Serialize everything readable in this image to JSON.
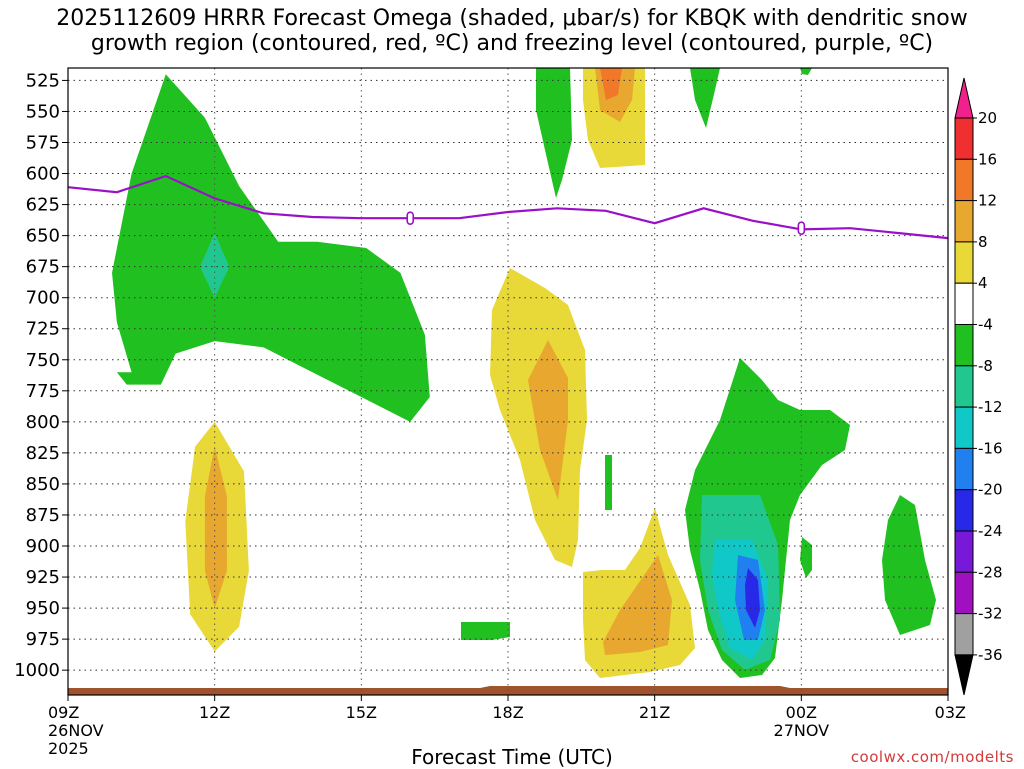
{
  "title_line1": "2025112609 HRRR Forecast Omega (shaded, μbar/s) for KBQK with dendritic snow",
  "title_line2": "growth region (contoured, red, ºC) and freezing level (contoured, purple, ºC)",
  "xlabel": "Forecast Time (UTC)",
  "credit": "coolwx.com/modelts",
  "chart_data": {
    "type": "time-height cross section (filled contours)",
    "x_unit": "hours since 2025-11-26 09Z",
    "xlim": [
      0,
      18
    ],
    "ylim_hpa": [
      1020,
      515
    ],
    "y_ticks": [
      525,
      550,
      575,
      600,
      625,
      650,
      675,
      700,
      725,
      750,
      775,
      800,
      825,
      850,
      875,
      900,
      925,
      950,
      975,
      1000
    ],
    "x_ticks": [
      {
        "x": 0,
        "label": "09Z",
        "sub1": "26NOV",
        "sub2": "2025"
      },
      {
        "x": 3,
        "label": "12Z",
        "sub1": "",
        "sub2": ""
      },
      {
        "x": 6,
        "label": "15Z",
        "sub1": "",
        "sub2": ""
      },
      {
        "x": 9,
        "label": "18Z",
        "sub1": "",
        "sub2": ""
      },
      {
        "x": 12,
        "label": "21Z",
        "sub1": "",
        "sub2": ""
      },
      {
        "x": 15,
        "label": "00Z",
        "sub1": "27NOV",
        "sub2": ""
      },
      {
        "x": 18,
        "label": "03Z",
        "sub1": "",
        "sub2": ""
      }
    ],
    "colorbar": {
      "labels": [
        "20",
        "16",
        "12",
        "8",
        "4",
        "-4",
        "-8",
        "-12",
        "-16",
        "-20",
        "-24",
        "-28",
        "-32",
        "-36"
      ],
      "colors": [
        "#f0208c",
        "#f03030",
        "#f07828",
        "#e8a830",
        "#e8d838",
        "#ffffff",
        "#20c020",
        "#20c890",
        "#10c8c8",
        "#2080f0",
        "#2828e8",
        "#7818d8",
        "#a010c0",
        "#a0a0a0",
        "#000000"
      ]
    },
    "freezing_level": {
      "color": "#9a10c8",
      "x": [
        0,
        1,
        2,
        3,
        4,
        5,
        6,
        7,
        8,
        9,
        10,
        11,
        12,
        13,
        14,
        15,
        16,
        17,
        18
      ],
      "p": [
        611,
        615,
        602,
        620,
        632,
        635,
        636,
        636,
        636,
        631,
        628,
        630,
        640,
        628,
        638,
        645,
        644,
        648,
        652
      ],
      "markers": [
        {
          "x": 7.0,
          "p": 636,
          "label": "0"
        },
        {
          "x": 15.0,
          "p": 644,
          "label": "0"
        }
      ]
    },
    "omega_regions": [
      {
        "level": "-4 to -8",
        "color": "#20c020",
        "x": [
          1.0,
          1.2,
          1.9,
          2.2,
          3.0,
          4.0,
          5.0,
          6.0,
          7.0,
          7.4,
          7.3,
          6.8,
          6.1,
          5.1,
          4.3,
          3.5,
          2.8,
          2.0,
          1.3,
          0.9,
          1.0,
          1.3
        ],
        "p": [
          760,
          770,
          770,
          745,
          735,
          740,
          760,
          780,
          800,
          780,
          730,
          680,
          660,
          655,
          655,
          610,
          555,
          520,
          600,
          680,
          720,
          760
        ]
      },
      {
        "level": "-8 to -12",
        "color": "#20c890",
        "x": [
          3.0,
          2.7,
          3.0,
          3.3
        ],
        "p": [
          648,
          675,
          700,
          675
        ]
      },
      {
        "level": "4 to 8",
        "color": "#e8d838",
        "x": [
          2.6,
          3.0,
          3.6,
          3.7,
          3.5,
          3.0,
          2.5,
          2.4
        ],
        "p": [
          820,
          800,
          840,
          920,
          965,
          985,
          955,
          880
        ]
      },
      {
        "level": "8 to 12",
        "color": "#e8a830",
        "x": [
          3.0,
          3.25,
          3.25,
          3.0,
          2.8,
          2.8
        ],
        "p": [
          820,
          860,
          920,
          950,
          920,
          860
        ]
      }
    ]
  }
}
